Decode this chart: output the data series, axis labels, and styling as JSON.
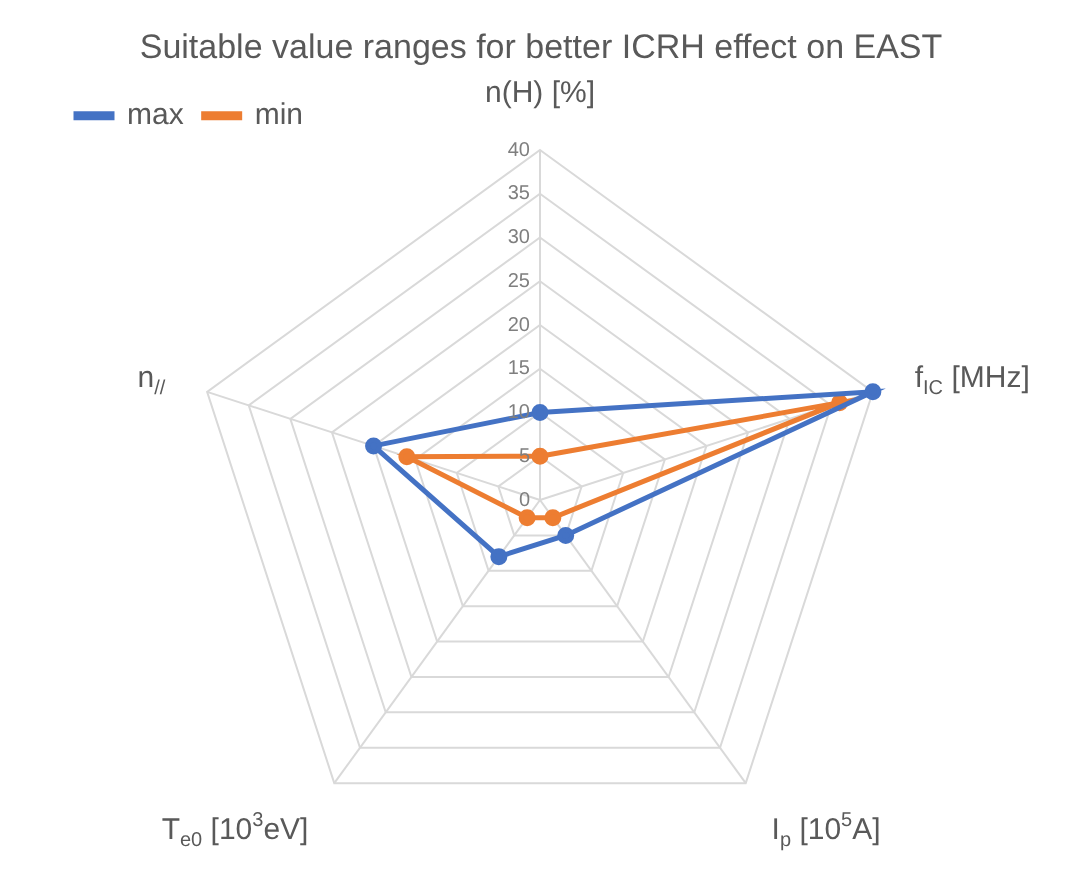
{
  "chart_data": {
    "type": "radar",
    "title": "Suitable value ranges for better ICRH effect on EAST",
    "categories": [
      "n(H) [%]",
      "f$_{IC}$ [MHz]",
      "I$_{p}$ [10$^{5}$A]",
      "T$_{e0}$ [10$^{3}$eV]",
      "n$_{//}$"
    ],
    "series": [
      {
        "name": "max",
        "color": "#4472c4",
        "values": [
          10,
          40,
          5,
          8,
          20
        ]
      },
      {
        "name": "min",
        "color": "#ed7d31",
        "values": [
          5,
          36,
          2.5,
          2.5,
          16
        ]
      }
    ],
    "ylim": [
      0,
      40
    ],
    "yticks": [
      0,
      5,
      10,
      15,
      20,
      25,
      30,
      35,
      40
    ],
    "grid": true,
    "legend": "top left",
    "marker": "circle"
  }
}
